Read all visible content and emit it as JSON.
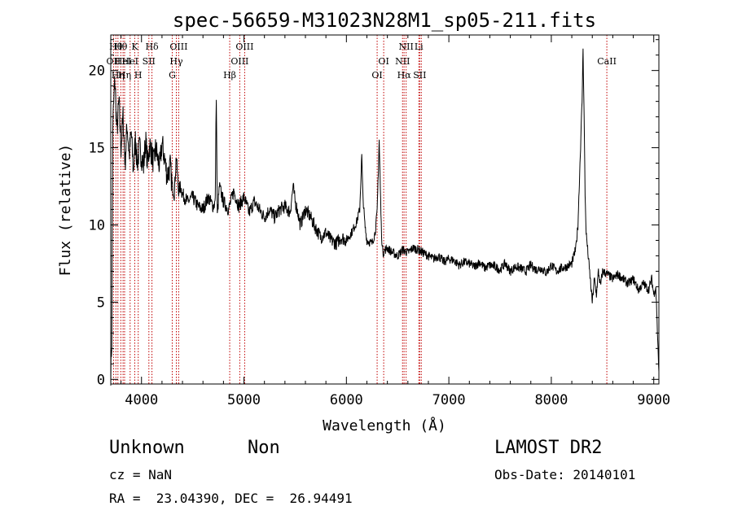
{
  "chart_data": {
    "type": "line",
    "title": "spec-56659-M31023N28M1_sp05-211.fits",
    "xlabel": "Wavelength (Å)",
    "ylabel": "Flux (relative)",
    "xlim": [
      3700,
      9050
    ],
    "ylim": [
      -0.3,
      22.3
    ],
    "xticks": [
      4000,
      5000,
      6000,
      7000,
      8000,
      9000
    ],
    "yticks": [
      0,
      5,
      10,
      15,
      20
    ],
    "grid": false,
    "line_color": "#000000",
    "marker_color": "#c00000",
    "series": [
      {
        "x": [
          3700,
          3710,
          3720,
          3740,
          3760,
          3780,
          3800,
          3820,
          3840,
          3860,
          3880,
          3900,
          3920,
          3940,
          3960,
          3980,
          4000,
          4020,
          4040,
          4060,
          4080,
          4100,
          4120,
          4140,
          4160,
          4180,
          4200,
          4220,
          4250,
          4280,
          4300,
          4320,
          4340,
          4360,
          4380,
          4400,
          4450,
          4500,
          4550,
          4600,
          4650,
          4700,
          4720,
          4730,
          4740,
          4760,
          4800,
          4850,
          4900,
          4950,
          5000,
          5050,
          5100,
          5150,
          5200,
          5250,
          5300,
          5350,
          5400,
          5450,
          5480,
          5500,
          5520,
          5550,
          5600,
          5650,
          5700,
          5750,
          5800,
          5850,
          5900,
          5950,
          6000,
          6050,
          6100,
          6130,
          6150,
          6160,
          6180,
          6200,
          6250,
          6280,
          6300,
          6320,
          6340,
          6350,
          6360,
          6380,
          6400,
          6450,
          6500,
          6550,
          6600,
          6650,
          6700,
          6750,
          6800,
          6850,
          6900,
          6950,
          7000,
          7050,
          7100,
          7150,
          7200,
          7250,
          7300,
          7350,
          7400,
          7450,
          7500,
          7550,
          7600,
          7650,
          7700,
          7750,
          7800,
          7850,
          7900,
          7950,
          8000,
          8050,
          8100,
          8150,
          8200,
          8240,
          8260,
          8280,
          8300,
          8310,
          8320,
          8330,
          8340,
          8360,
          8380,
          8400,
          8420,
          8440,
          8460,
          8480,
          8500,
          8550,
          8600,
          8650,
          8700,
          8750,
          8800,
          8850,
          8900,
          8950,
          8980,
          9000,
          9020,
          9050
        ],
        "y": [
          0.5,
          2.5,
          16.5,
          19.5,
          16.0,
          18.0,
          15.0,
          17.0,
          14.0,
          16.5,
          14.5,
          16.0,
          13.5,
          15.5,
          14.0,
          15.0,
          14.5,
          13.8,
          15.5,
          14.0,
          15.2,
          14.6,
          14.0,
          15.0,
          14.2,
          13.8,
          15.3,
          14.5,
          13.2,
          13.8,
          12.5,
          12.0,
          14.5,
          12.2,
          12.5,
          12.0,
          11.5,
          11.8,
          11.2,
          11.0,
          11.8,
          11.2,
          11.5,
          18.5,
          10.5,
          12.5,
          11.5,
          11.0,
          12.2,
          11.2,
          11.8,
          10.8,
          11.5,
          11.0,
          10.5,
          11.0,
          10.5,
          11.0,
          11.2,
          10.8,
          12.5,
          11.5,
          11.0,
          10.0,
          11.0,
          10.5,
          9.8,
          9.2,
          9.5,
          9.0,
          8.8,
          9.2,
          9.0,
          9.5,
          10.2,
          11.0,
          14.5,
          12.0,
          10.0,
          9.0,
          8.8,
          9.5,
          10.8,
          15.5,
          10.0,
          8.5,
          8.2,
          8.4,
          8.5,
          8.2,
          8.0,
          8.4,
          8.2,
          8.5,
          8.4,
          8.2,
          8.0,
          7.8,
          8.0,
          7.6,
          7.8,
          7.7,
          7.4,
          7.6,
          7.5,
          7.3,
          7.6,
          7.2,
          7.4,
          7.3,
          7.1,
          7.5,
          7.0,
          7.3,
          7.2,
          7.0,
          7.4,
          7.1,
          7.2,
          6.9,
          7.4,
          7.0,
          7.2,
          7.3,
          7.5,
          8.5,
          10.0,
          14.0,
          18.0,
          21.5,
          17.0,
          12.0,
          9.5,
          8.0,
          6.5,
          5.0,
          6.5,
          5.5,
          7.0,
          6.0,
          7.0,
          6.8,
          6.5,
          6.8,
          6.5,
          6.2,
          6.5,
          5.8,
          6.2,
          5.8,
          6.5,
          5.5,
          6.0,
          0.5
        ]
      }
    ],
    "lines": [
      {
        "w": 3727,
        "labels": [
          "OII"
        ],
        "row": 1
      },
      {
        "w": 3750,
        "labels": [
          "Hθ"
        ],
        "row": 0
      },
      {
        "w": 3770,
        "labels": [
          "Hη"
        ],
        "row": 2
      },
      {
        "w": 3798,
        "labels": [
          "Hθ"
        ],
        "row": 0
      },
      {
        "w": 3820,
        "labels": [
          "HeI"
        ],
        "row": 1
      },
      {
        "w": 3835,
        "labels": [
          "Hη"
        ],
        "row": 2
      },
      {
        "w": 3889,
        "labels": [
          "HeI"
        ],
        "row": 1
      },
      {
        "w": 3934,
        "labels": [
          "K"
        ],
        "row": 0
      },
      {
        "w": 3968,
        "labels": [
          "H"
        ],
        "row": 2
      },
      {
        "w": 4072,
        "labels": [
          "SII"
        ],
        "row": 1
      },
      {
        "w": 4102,
        "labels": [
          "Hδ"
        ],
        "row": 0
      },
      {
        "w": 4300,
        "labels": [
          "G"
        ],
        "row": 2
      },
      {
        "w": 4340,
        "labels": [
          "Hγ"
        ],
        "row": 1
      },
      {
        "w": 4363,
        "labels": [
          "OIII"
        ],
        "row": 0
      },
      {
        "w": 4861,
        "labels": [
          "Hβ"
        ],
        "row": 2
      },
      {
        "w": 4959,
        "labels": [
          "OIII"
        ],
        "row": 1
      },
      {
        "w": 5007,
        "labels": [
          "OIII"
        ],
        "row": 0
      },
      {
        "w": 6300,
        "labels": [
          "OI"
        ],
        "row": 2
      },
      {
        "w": 6364,
        "labels": [
          "OI"
        ],
        "row": 1
      },
      {
        "w": 6548,
        "labels": [
          "NII"
        ],
        "row": 1
      },
      {
        "w": 6563,
        "labels": [
          "Hα"
        ],
        "row": 2
      },
      {
        "w": 6583,
        "labels": [
          "NII"
        ],
        "row": 0
      },
      {
        "w": 6707,
        "labels": [
          "Li"
        ],
        "row": 0
      },
      {
        "w": 6716,
        "labels": [
          "SII"
        ],
        "row": 2
      },
      {
        "w": 6731,
        "labels": [],
        "row": 2
      },
      {
        "w": 8542,
        "labels": [
          "CaII"
        ],
        "row": 1
      }
    ]
  },
  "info": {
    "object_class": "Unknown",
    "subclass": "Non",
    "cz": "cz = NaN",
    "coords": "RA =  23.04390, DEC =  26.94491",
    "survey": "LAMOST DR2",
    "obs_date": "Obs-Date: 20140101"
  }
}
